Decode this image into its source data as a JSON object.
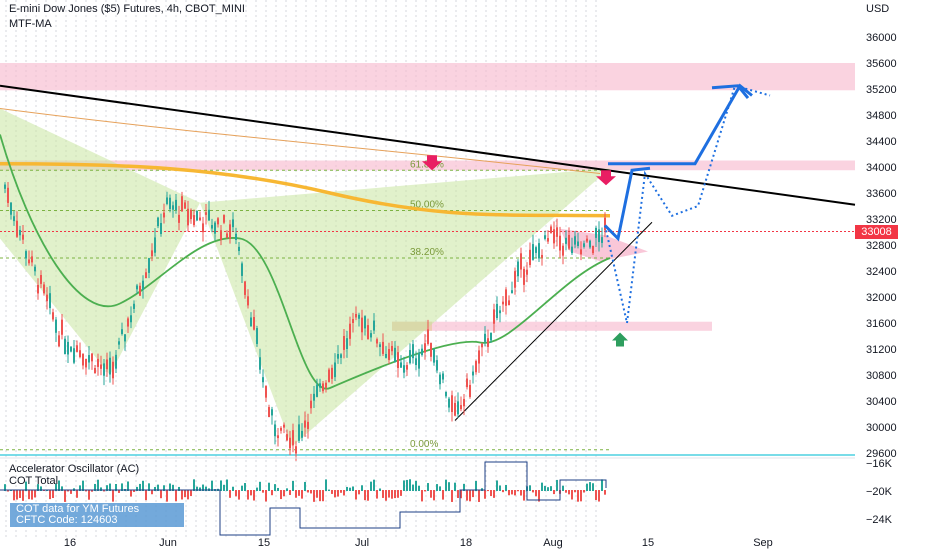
{
  "header": {
    "title": "E-mini Dow Jones ($5) Futures, 4h, CBOT_MINI",
    "indicator": "MTF-MA",
    "currency": "USD",
    "last_price": "33008"
  },
  "oscillator": {
    "title": "Accelerator Oscillator (AC)",
    "cot_label": "COT Total",
    "cot_box_line1": "COT data for YM Futures",
    "cot_box_line2": "CFTC Code: 124603",
    "y_ticks": [
      "−16K",
      "−20K",
      "−24K"
    ]
  },
  "colors": {
    "bull": "#26a69a",
    "bear": "#ef5350",
    "ma_fast": "#4caf50",
    "ma_slow": "#f7b733",
    "trendline": "#000000",
    "projection": "#1e6fe0",
    "zone": "#f8bbd0",
    "harmonic_fill": "#c8e6a0",
    "current_price": "#f23645"
  },
  "chart_data": {
    "type": "candlestick",
    "y_axis_ticks": [
      36000,
      35600,
      35200,
      34800,
      34400,
      34000,
      33600,
      33200,
      32800,
      32400,
      32000,
      31600,
      31200,
      30800,
      30400,
      30000,
      29600
    ],
    "x_axis_labels": [
      "16",
      "Jun",
      "15",
      "Jul",
      "18",
      "Aug",
      "15",
      "Sep"
    ],
    "ylim": [
      29600,
      36200
    ],
    "current_price": 33008,
    "fib_levels": [
      {
        "label": "61.80%",
        "value": 33950
      },
      {
        "label": "50.00%",
        "value": 33330
      },
      {
        "label": "38.20%",
        "value": 32600
      },
      {
        "label": "0.00%",
        "value": 29650
      }
    ],
    "resistance_zones": [
      {
        "from": 35180,
        "to": 35600
      },
      {
        "from": 33950,
        "to": 34100
      }
    ],
    "support_zone": {
      "from": 31480,
      "to": 31620
    },
    "trendline": {
      "from": [
        0,
        35250
      ],
      "to": [
        1,
        33420
      ]
    },
    "key_points": [
      {
        "label": "start",
        "value": 33700
      },
      {
        "label": "May low",
        "value": 30800
      },
      {
        "label": "June peak",
        "value": 33600
      },
      {
        "label": "June low",
        "value": 29700
      },
      {
        "label": "July peak",
        "value": 31700
      },
      {
        "label": "July low",
        "value": 30100
      },
      {
        "label": "Aug high",
        "value": 33000
      }
    ],
    "projection_path": [
      34050,
      32900,
      33950,
      33980,
      34000,
      35250
    ],
    "projection_alt_path": [
      31600,
      33900,
      33250,
      35250
    ]
  }
}
